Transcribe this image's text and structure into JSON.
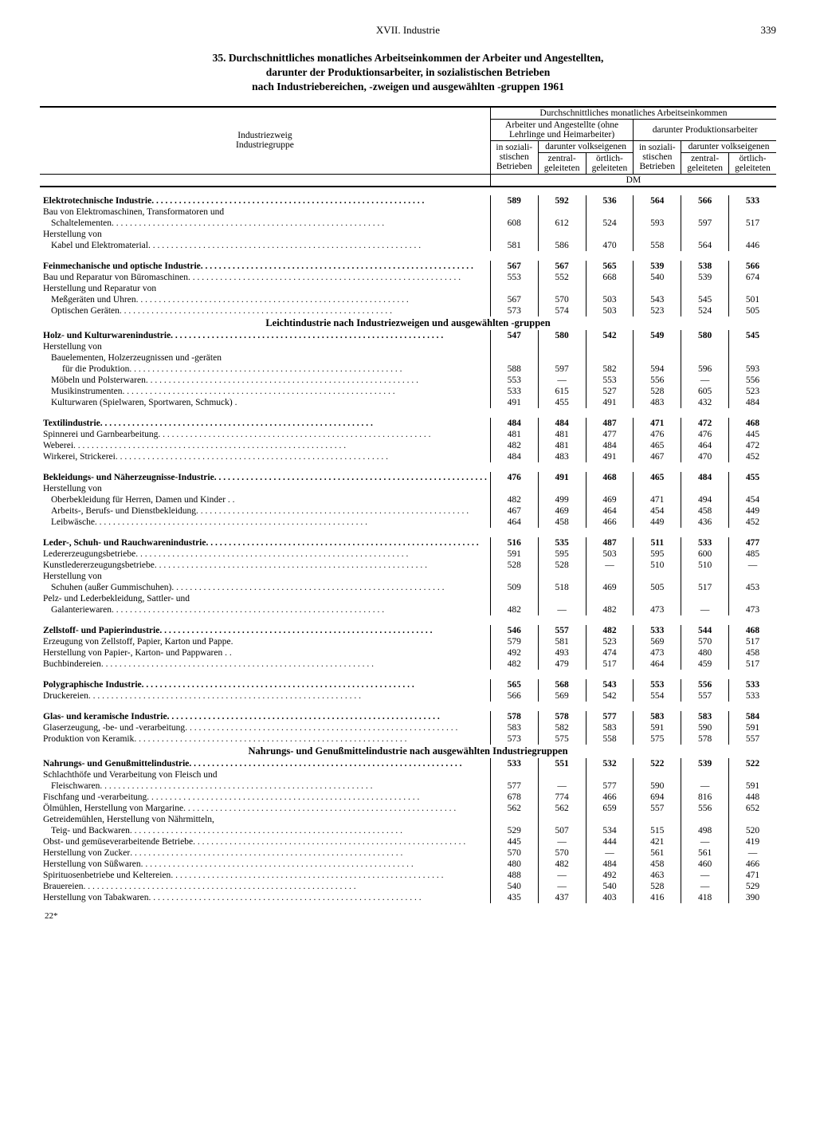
{
  "chapter": "XVII. Industrie",
  "page_number": "339",
  "title_lines": [
    "35. Durchschnittliches monatliches Arbeitseinkommen der Arbeiter und Angestellten,",
    "darunter der Produktionsarbeiter, in sozialistischen Betrieben",
    "nach Industriebereichen, -zweigen und ausgewählten -gruppen 1961"
  ],
  "col_headers": {
    "stub1": "Industriezweig",
    "stub2": "Industriegruppe",
    "super": "Durchschnittliches monatliches Arbeitseinkommen",
    "left_group": "Arbeiter und Angestellte (ohne Lehrlinge und Heimarbeiter)",
    "right_group": "darunter Produktionsarbeiter",
    "in_soz": "in soziali-\nstischen\nBetrieben",
    "darunter_volk": "darunter volkseigenen",
    "zentral": "zentral-\ngeleiteten",
    "oertlich": "örtlich-\ngeleiteten",
    "unit": "DM"
  },
  "sections": [
    {
      "title": null,
      "rows": [
        {
          "label": "Elektrotechnische Industrie",
          "bold": true,
          "indent": 0,
          "dots": true,
          "v": [
            "589",
            "592",
            "536",
            "564",
            "566",
            "533"
          ]
        },
        {
          "label": "Bau von Elektromaschinen, Transformatoren und",
          "indent": 0,
          "dots": false,
          "v": null
        },
        {
          "label": "Schaltelementen",
          "indent": 1,
          "dots": true,
          "v": [
            "608",
            "612",
            "524",
            "593",
            "597",
            "517"
          ]
        },
        {
          "label": "Herstellung von",
          "indent": 0,
          "dots": false,
          "v": null
        },
        {
          "label": "Kabel und Elektromaterial",
          "indent": 1,
          "dots": true,
          "v": [
            "581",
            "586",
            "470",
            "558",
            "564",
            "446"
          ]
        },
        {
          "gap": true
        },
        {
          "label": "Feinmechanische und optische Industrie",
          "bold": true,
          "indent": 0,
          "dots": true,
          "v": [
            "567",
            "567",
            "565",
            "539",
            "538",
            "566"
          ]
        },
        {
          "label": "Bau und Reparatur von Büromaschinen",
          "indent": 0,
          "dots": true,
          "v": [
            "553",
            "552",
            "668",
            "540",
            "539",
            "674"
          ]
        },
        {
          "label": "Herstellung und Reparatur von",
          "indent": 0,
          "dots": false,
          "v": null
        },
        {
          "label": "Meßgeräten und Uhren",
          "indent": 1,
          "dots": true,
          "v": [
            "567",
            "570",
            "503",
            "543",
            "545",
            "501"
          ]
        },
        {
          "label": "Optischen Geräten",
          "indent": 1,
          "dots": true,
          "v": [
            "573",
            "574",
            "503",
            "523",
            "524",
            "505"
          ]
        }
      ]
    },
    {
      "title": "Leichtindustrie nach Industriezweigen und ausgewählten -gruppen",
      "rows": [
        {
          "label": "Holz- und Kulturwarenindustrie",
          "bold": true,
          "indent": 0,
          "dots": true,
          "v": [
            "547",
            "580",
            "542",
            "549",
            "580",
            "545"
          ]
        },
        {
          "label": "Herstellung von",
          "indent": 0,
          "dots": false,
          "v": null
        },
        {
          "label": "Bauelementen, Holzerzeugnissen und -geräten",
          "indent": 1,
          "dots": false,
          "v": null
        },
        {
          "label": "für die Produktion",
          "indent": 2,
          "dots": true,
          "v": [
            "588",
            "597",
            "582",
            "594",
            "596",
            "593"
          ]
        },
        {
          "label": "Möbeln und Polsterwaren",
          "indent": 1,
          "dots": true,
          "v": [
            "553",
            "—",
            "553",
            "556",
            "—",
            "556"
          ]
        },
        {
          "label": "Musikinstrumenten",
          "indent": 1,
          "dots": true,
          "v": [
            "533",
            "615",
            "527",
            "528",
            "605",
            "523"
          ]
        },
        {
          "label": "Kulturwaren (Spielwaren, Sportwaren, Schmuck) .",
          "indent": 1,
          "dots": false,
          "v": [
            "491",
            "455",
            "491",
            "483",
            "432",
            "484"
          ]
        },
        {
          "gap": true
        },
        {
          "label": "Textilindustrie",
          "bold": true,
          "indent": 0,
          "dots": true,
          "v": [
            "484",
            "484",
            "487",
            "471",
            "472",
            "468"
          ]
        },
        {
          "label": "Spinnerei und Garnbearbeitung",
          "indent": 0,
          "dots": true,
          "v": [
            "481",
            "481",
            "477",
            "476",
            "476",
            "445"
          ]
        },
        {
          "label": "Weberei",
          "indent": 0,
          "dots": true,
          "v": [
            "482",
            "481",
            "484",
            "465",
            "464",
            "472"
          ]
        },
        {
          "label": "Wirkerei, Strickerei",
          "indent": 0,
          "dots": true,
          "v": [
            "484",
            "483",
            "491",
            "467",
            "470",
            "452"
          ]
        },
        {
          "gap": true
        },
        {
          "label": "Bekleidungs- und Näherzeugnisse-Industrie",
          "bold": true,
          "indent": 0,
          "dots": true,
          "v": [
            "476",
            "491",
            "468",
            "465",
            "484",
            "455"
          ]
        },
        {
          "label": "Herstellung von",
          "indent": 0,
          "dots": false,
          "v": null
        },
        {
          "label": "Oberbekleidung für Herren, Damen und Kinder . .",
          "indent": 1,
          "dots": false,
          "v": [
            "482",
            "499",
            "469",
            "471",
            "494",
            "454"
          ]
        },
        {
          "label": "Arbeits-, Berufs- und Dienstbekleidung",
          "indent": 1,
          "dots": true,
          "v": [
            "467",
            "469",
            "464",
            "454",
            "458",
            "449"
          ]
        },
        {
          "label": "Leibwäsche",
          "indent": 1,
          "dots": true,
          "v": [
            "464",
            "458",
            "466",
            "449",
            "436",
            "452"
          ]
        },
        {
          "gap": true
        },
        {
          "label": "Leder-, Schuh- und Rauchwarenindustrie",
          "bold": true,
          "indent": 0,
          "dots": true,
          "v": [
            "516",
            "535",
            "487",
            "511",
            "533",
            "477"
          ]
        },
        {
          "label": "Ledererzeugungsbetriebe",
          "indent": 0,
          "dots": true,
          "v": [
            "591",
            "595",
            "503",
            "595",
            "600",
            "485"
          ]
        },
        {
          "label": "Kunstledererzeugungsbetriebe",
          "indent": 0,
          "dots": true,
          "v": [
            "528",
            "528",
            "—",
            "510",
            "510",
            "—"
          ]
        },
        {
          "label": "Herstellung von",
          "indent": 0,
          "dots": false,
          "v": null
        },
        {
          "label": "Schuhen (außer Gummischuhen)",
          "indent": 1,
          "dots": true,
          "v": [
            "509",
            "518",
            "469",
            "505",
            "517",
            "453"
          ]
        },
        {
          "label": "Pelz- und Lederbekleidung, Sattler- und",
          "indent": 0,
          "dots": false,
          "v": null
        },
        {
          "label": "Galanteriewaren",
          "indent": 1,
          "dots": true,
          "v": [
            "482",
            "—",
            "482",
            "473",
            "—",
            "473"
          ]
        },
        {
          "gap": true
        },
        {
          "label": "Zellstoff- und Papierindustrie",
          "bold": true,
          "indent": 0,
          "dots": true,
          "v": [
            "546",
            "557",
            "482",
            "533",
            "544",
            "468"
          ]
        },
        {
          "label": "Erzeugung von Zellstoff, Papier, Karton und Pappe.",
          "indent": 0,
          "dots": false,
          "v": [
            "579",
            "581",
            "523",
            "569",
            "570",
            "517"
          ]
        },
        {
          "label": "Herstellung von Papier-, Karton- und Pappwaren . .",
          "indent": 0,
          "dots": false,
          "v": [
            "492",
            "493",
            "474",
            "473",
            "480",
            "458"
          ]
        },
        {
          "label": "Buchbindereien",
          "indent": 0,
          "dots": true,
          "v": [
            "482",
            "479",
            "517",
            "464",
            "459",
            "517"
          ]
        },
        {
          "gap": true
        },
        {
          "label": "Polygraphische Industrie",
          "bold": true,
          "indent": 0,
          "dots": true,
          "v": [
            "565",
            "568",
            "543",
            "553",
            "556",
            "533"
          ]
        },
        {
          "label": "Druckereien",
          "indent": 0,
          "dots": true,
          "v": [
            "566",
            "569",
            "542",
            "554",
            "557",
            "533"
          ]
        },
        {
          "gap": true
        },
        {
          "label": "Glas- und keramische Industrie",
          "bold": true,
          "indent": 0,
          "dots": true,
          "v": [
            "578",
            "578",
            "577",
            "583",
            "583",
            "584"
          ]
        },
        {
          "label": "Glaserzeugung, -be- und -verarbeitung",
          "indent": 0,
          "dots": true,
          "v": [
            "583",
            "582",
            "583",
            "591",
            "590",
            "591"
          ]
        },
        {
          "label": "Produktion von Keramik",
          "indent": 0,
          "dots": true,
          "v": [
            "573",
            "575",
            "558",
            "575",
            "578",
            "557"
          ]
        }
      ]
    },
    {
      "title": "Nahrungs- und Genußmittelindustrie nach ausgewählten Industriegruppen",
      "rows": [
        {
          "label": "Nahrungs- und Genußmittelindustrie",
          "bold": true,
          "indent": 0,
          "dots": true,
          "v": [
            "533",
            "551",
            "532",
            "522",
            "539",
            "522"
          ]
        },
        {
          "label": "Schlachthöfe und Verarbeitung von Fleisch und",
          "indent": 0,
          "dots": false,
          "v": null
        },
        {
          "label": "Fleischwaren",
          "indent": 1,
          "dots": true,
          "v": [
            "577",
            "—",
            "577",
            "590",
            "—",
            "591"
          ]
        },
        {
          "label": "Fischfang und -verarbeitung",
          "indent": 0,
          "dots": true,
          "v": [
            "678",
            "774",
            "466",
            "694",
            "816",
            "448"
          ]
        },
        {
          "label": "Ölmühlen, Herstellung von Margarine",
          "indent": 0,
          "dots": true,
          "v": [
            "562",
            "562",
            "659",
            "557",
            "556",
            "652"
          ]
        },
        {
          "label": "Getreidemühlen, Herstellung von Nährmitteln,",
          "indent": 0,
          "dots": false,
          "v": null
        },
        {
          "label": "Teig- und Backwaren",
          "indent": 1,
          "dots": true,
          "v": [
            "529",
            "507",
            "534",
            "515",
            "498",
            "520"
          ]
        },
        {
          "label": "Obst- und gemüseverarbeitende Betriebe",
          "indent": 0,
          "dots": true,
          "v": [
            "445",
            "—",
            "444",
            "421",
            "—",
            "419"
          ]
        },
        {
          "label": "Herstellung von Zucker",
          "indent": 0,
          "dots": true,
          "v": [
            "570",
            "570",
            "—",
            "561",
            "561",
            "—"
          ]
        },
        {
          "label": "Herstellung von Süßwaren",
          "indent": 0,
          "dots": true,
          "v": [
            "480",
            "482",
            "484",
            "458",
            "460",
            "466"
          ]
        },
        {
          "label": "Spirituosenbetriebe und Keltereien",
          "indent": 0,
          "dots": true,
          "v": [
            "488",
            "—",
            "492",
            "463",
            "—",
            "471"
          ]
        },
        {
          "label": "Brauereien",
          "indent": 0,
          "dots": true,
          "v": [
            "540",
            "—",
            "540",
            "528",
            "—",
            "529"
          ]
        },
        {
          "label": "Herstellung von Tabakwaren",
          "indent": 0,
          "dots": true,
          "v": [
            "435",
            "437",
            "403",
            "416",
            "418",
            "390"
          ]
        }
      ]
    }
  ],
  "footer": "22*",
  "layout": {
    "col_widths_pct": [
      34,
      11,
      11,
      11,
      11,
      11,
      11
    ],
    "font_size_pt": 11.5,
    "background_color": "#ffffff",
    "text_color": "#000000",
    "rule_color": "#000000"
  }
}
